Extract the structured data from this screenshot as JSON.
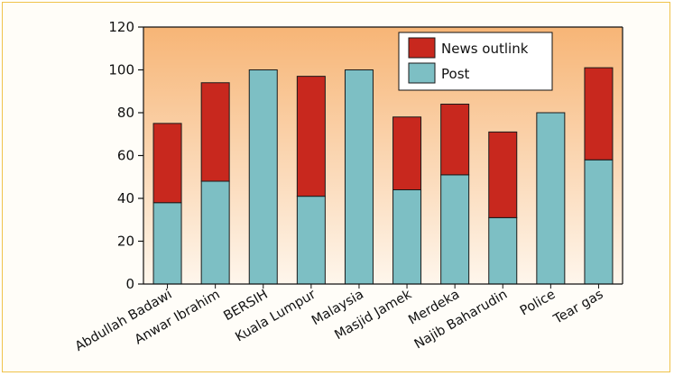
{
  "chart_data": {
    "type": "bar",
    "stacked": true,
    "categories": [
      "Abdullah Badawi",
      "Anwar Ibrahim",
      "BERSIH",
      "Kuala Lumpur",
      "Malaysia",
      "Masjid Jamek",
      "Merdeka",
      "Najib Baharudin",
      "Police",
      "Tear gas"
    ],
    "series": [
      {
        "name": "Post",
        "values": [
          38,
          48,
          100,
          41,
          100,
          44,
          51,
          31,
          80,
          58
        ],
        "color": "#7dbfc4"
      },
      {
        "name": "News outlink",
        "values": [
          37,
          46,
          0,
          56,
          0,
          34,
          33,
          40,
          0,
          43
        ],
        "color": "#c8281e"
      }
    ],
    "ylim": [
      0,
      120
    ],
    "yticks": [
      0,
      20,
      40,
      60,
      80,
      100,
      120
    ],
    "ytick_labels": [
      "0",
      "20",
      "40",
      "60",
      "80",
      "100",
      "120"
    ],
    "title": "",
    "xlabel": "",
    "ylabel": "",
    "legend": {
      "placement": "top-right",
      "entries": [
        "News outlink",
        "Post"
      ]
    },
    "plot_background": {
      "top": "#f7b576",
      "bottom": "#fef6ec"
    },
    "grid": false
  }
}
